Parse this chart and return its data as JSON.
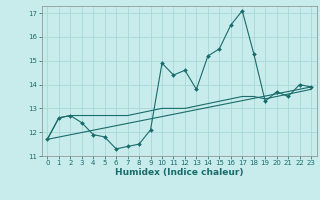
{
  "xlabel": "Humidex (Indice chaleur)",
  "bg_color": "#c8ecec",
  "grid_color": "#a8d8d8",
  "line_color": "#1a6b6b",
  "xlim": [
    -0.5,
    23.5
  ],
  "ylim": [
    11,
    17.3
  ],
  "xticks": [
    0,
    1,
    2,
    3,
    4,
    5,
    6,
    7,
    8,
    9,
    10,
    11,
    12,
    13,
    14,
    15,
    16,
    17,
    18,
    19,
    20,
    21,
    22,
    23
  ],
  "yticks": [
    11,
    12,
    13,
    14,
    15,
    16,
    17
  ],
  "line1_x": [
    0,
    1,
    2,
    3,
    4,
    5,
    6,
    7,
    8,
    9,
    10,
    11,
    12,
    13,
    14,
    15,
    16,
    17,
    18,
    19,
    20,
    21,
    22,
    23
  ],
  "line1_y": [
    11.7,
    12.6,
    12.7,
    12.4,
    11.9,
    11.8,
    11.3,
    11.4,
    11.5,
    12.1,
    14.9,
    14.4,
    14.6,
    13.8,
    15.2,
    15.5,
    16.5,
    17.1,
    15.3,
    13.3,
    13.7,
    13.5,
    14.0,
    13.9
  ],
  "line2_x": [
    0,
    1,
    2,
    3,
    4,
    5,
    6,
    7,
    8,
    9,
    10,
    11,
    12,
    13,
    14,
    15,
    16,
    17,
    18,
    19,
    20,
    21,
    22,
    23
  ],
  "line2_y": [
    11.7,
    12.6,
    12.7,
    12.7,
    12.7,
    12.7,
    12.7,
    12.7,
    12.8,
    12.9,
    13.0,
    13.0,
    13.0,
    13.1,
    13.2,
    13.3,
    13.4,
    13.5,
    13.5,
    13.4,
    13.5,
    13.6,
    13.7,
    13.8
  ],
  "line3_x": [
    0,
    23
  ],
  "line3_y": [
    11.7,
    13.9
  ],
  "tick_fontsize": 5.0,
  "xlabel_fontsize": 6.5,
  "xlabel_bold": true
}
